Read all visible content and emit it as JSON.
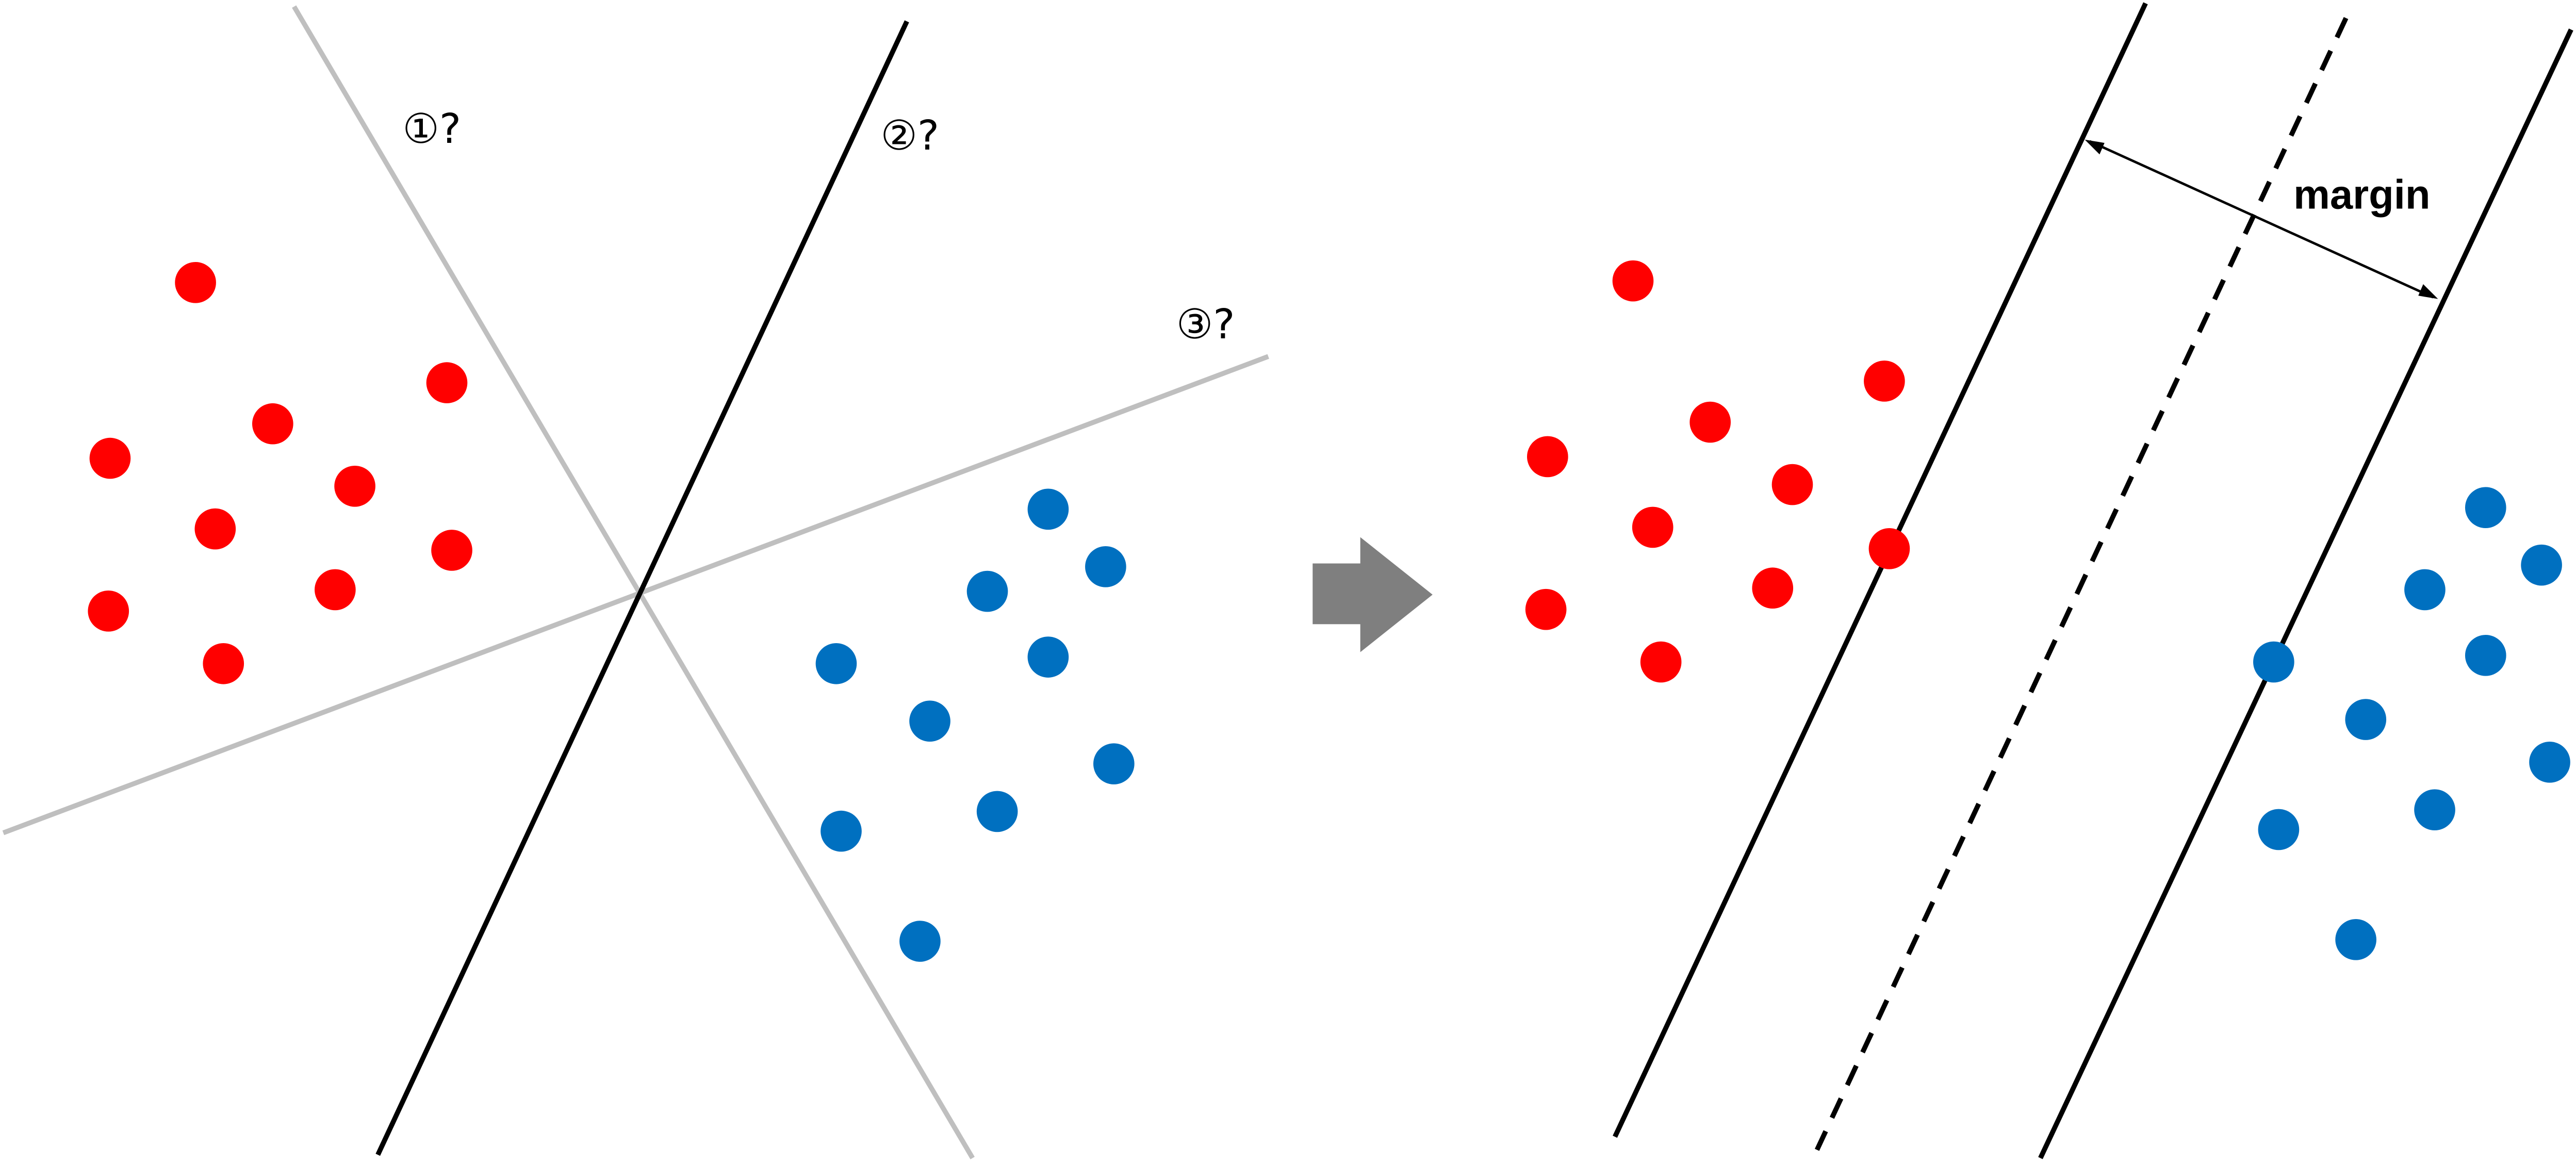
{
  "left_panel": {
    "line_labels": [
      "①?",
      "②?",
      "③?"
    ]
  },
  "right_panel": {
    "margin_label": "margin"
  },
  "colors": {
    "class_a": "#ff0000",
    "class_b": "#0070c0",
    "candidate_line": "#bfbfbf",
    "chosen_line": "#000000",
    "arrow": "#7f7f7f"
  }
}
